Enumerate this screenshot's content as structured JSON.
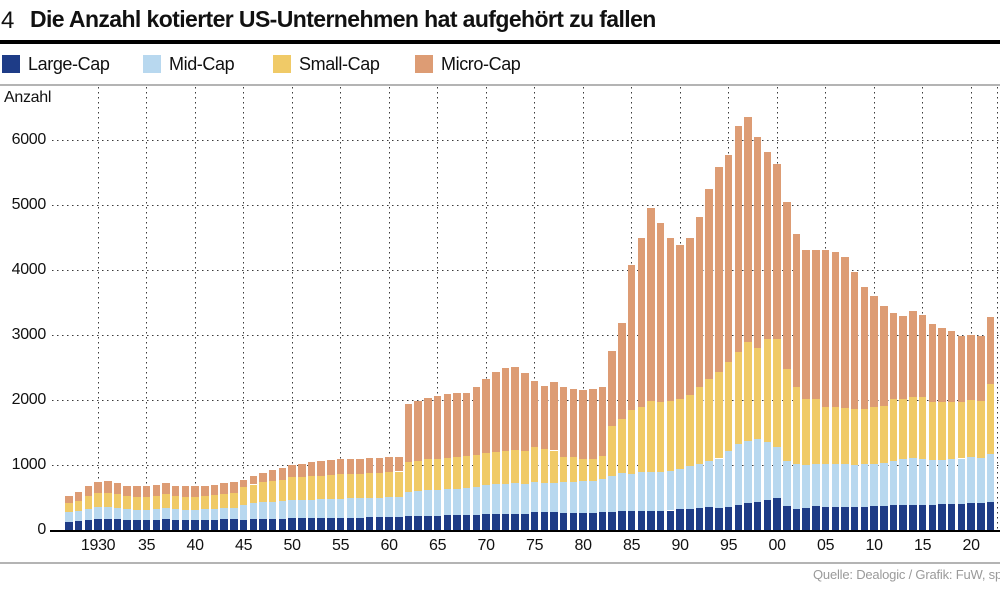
{
  "header": {
    "figure_number": "4",
    "title": "Die Anzahl kotierter US-Unternehmen hat aufgehört zu fallen"
  },
  "footer": {
    "source": "Quelle: Dealogic / Grafik: FuW, sp"
  },
  "chart_data": {
    "type": "bar",
    "stacked": true,
    "title": "Die Anzahl kotierter US-Unternehmen hat aufgehört zu fallen",
    "ylabel": "Anzahl",
    "ylim": [
      0,
      6800
    ],
    "yticks": [
      0,
      1000,
      2000,
      3000,
      4000,
      5000,
      6000
    ],
    "xtick_labels": [
      "1930",
      "35",
      "40",
      "45",
      "50",
      "55",
      "60",
      "65",
      "70",
      "75",
      "80",
      "85",
      "90",
      "95",
      "00",
      "05",
      "10",
      "15",
      "20"
    ],
    "xtick_years": [
      1930,
      1935,
      1940,
      1945,
      1950,
      1955,
      1960,
      1965,
      1970,
      1975,
      1980,
      1985,
      1990,
      1995,
      2000,
      2005,
      2010,
      2015,
      2020
    ],
    "years_start": 1927,
    "years_end": 2022,
    "grid": "dotted",
    "legend_position": "top",
    "series": [
      {
        "name": "Large-Cap",
        "color": "#1e3c87",
        "values": [
          130,
          140,
          160,
          168,
          170,
          162,
          155,
          152,
          152,
          155,
          162,
          154,
          152,
          152,
          154,
          158,
          163,
          166,
          160,
          165,
          170,
          172,
          175,
          178,
          180,
          182,
          184,
          186,
          188,
          190,
          192,
          194,
          196,
          200,
          205,
          210,
          215,
          220,
          222,
          225,
          228,
          230,
          235,
          240,
          245,
          250,
          252,
          250,
          272,
          270,
          270,
          268,
          266,
          265,
          266,
          270,
          282,
          285,
          290,
          292,
          295,
          297,
          300,
          323,
          330,
          335,
          349,
          338,
          359,
          385,
          415,
          436,
          462,
          492,
          364,
          323,
          334,
          364,
          349,
          349,
          350,
          355,
          360,
          374,
          375,
          380,
          385,
          390,
          389,
          390,
          395,
          400,
          405,
          411,
          415,
          426
        ]
      },
      {
        "name": "Mid-Cap",
        "color": "#b8d8ef",
        "values": [
          140,
          150,
          170,
          180,
          182,
          174,
          165,
          163,
          163,
          166,
          173,
          164,
          162,
          162,
          164,
          168,
          175,
          178,
          230,
          245,
          255,
          262,
          270,
          280,
          283,
          286,
          289,
          292,
          295,
          297,
          298,
          300,
          302,
          305,
          310,
          370,
          380,
          390,
          395,
          400,
          408,
          415,
          430,
          450,
          460,
          465,
          468,
          465,
          461,
          460,
          458,
          465,
          470,
          493,
          495,
          515,
          553,
          587,
          575,
          595,
          592,
          600,
          605,
          615,
          650,
          680,
          717,
          762,
          850,
          938,
          959,
          964,
          887,
          780,
          702,
          692,
          666,
          651,
          666,
          666,
          660,
          650,
          650,
          641,
          650,
          680,
          710,
          715,
          703,
          690,
          685,
          690,
          695,
          707,
          700,
          743
        ]
      },
      {
        "name": "Small-Cap",
        "color": "#f0ca67",
        "values": [
          140,
          160,
          195,
          215,
          222,
          212,
          200,
          198,
          198,
          202,
          213,
          202,
          198,
          198,
          200,
          206,
          216,
          222,
          270,
          290,
          310,
          323,
          330,
          350,
          355,
          360,
          365,
          370,
          375,
          376,
          378,
          379,
          380,
          383,
          385,
          460,
          470,
          475,
          480,
          485,
          488,
          490,
          495,
          495,
          500,
          505,
          508,
          505,
          539,
          520,
          495,
          385,
          382,
          334,
          331,
          358,
          770,
          836,
          975,
          1000,
          1103,
          1067,
          1080,
          1077,
          1100,
          1180,
          1257,
          1330,
          1380,
          1410,
          1513,
          1395,
          1589,
          1666,
          1404,
          1185,
          1015,
          1000,
          872,
          872,
          860,
          857,
          850,
          872,
          880,
          955,
          920,
          936,
          949,
          884,
          884,
          874,
          870,
          882,
          875,
          1077
        ]
      },
      {
        "name": "Micro-Cap",
        "color": "#dd9c74",
        "values": [
          110,
          130,
          155,
          182,
          186,
          172,
          160,
          157,
          157,
          162,
          172,
          160,
          158,
          158,
          162,
          168,
          176,
          179,
          115,
          130,
          145,
          163,
          175,
          192,
          202,
          212,
          222,
          232,
          232,
          232,
          232,
          232,
          232,
          232,
          230,
          895,
          925,
          945,
          963,
          985,
          986,
          975,
          1040,
          1135,
          1225,
          1270,
          1282,
          1200,
          1028,
          970,
          1047,
          1082,
          1052,
          1058,
          1078,
          1057,
          1155,
          1482,
          2240,
          2603,
          2960,
          2766,
          2505,
          2375,
          2410,
          2625,
          2927,
          3150,
          3181,
          3487,
          3463,
          3245,
          2872,
          2692,
          2570,
          2360,
          2295,
          2293,
          2421,
          2385,
          2325,
          2112,
          1874,
          1708,
          1546,
          1323,
          1272,
          1323,
          1271,
          1205,
          1139,
          1093,
          1020,
          1005,
          1000,
          1036
        ]
      }
    ]
  }
}
